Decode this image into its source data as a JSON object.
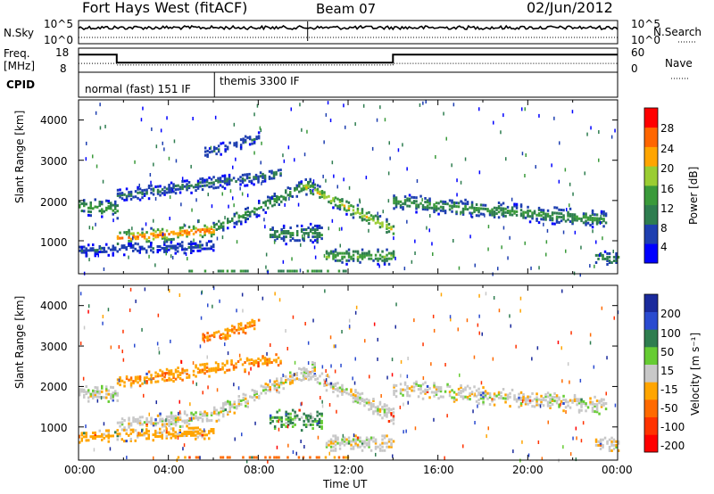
{
  "header": {
    "station": "Fort Hays West (fitACF)",
    "beam": "Beam 07",
    "date": "02/Jun/2012"
  },
  "status_panels": {
    "nsky_label": "N.Sky",
    "nsky_ticks": [
      "10^5",
      "10^0"
    ],
    "nsearch_label": "N.Search",
    "nsearch_ticks": [
      "10^5",
      "10^0"
    ],
    "freq_label_1": "Freq.",
    "freq_label_2": "[MHz]",
    "freq_ticks": [
      "18",
      "8"
    ],
    "nave_label": "Nave",
    "nave_ticks": [
      "60",
      "0"
    ],
    "cpid_label": "CPID",
    "cpid_segments": [
      {
        "start": 0,
        "label": "normal (fast) 151 IF"
      },
      {
        "start": 6.05,
        "label": "themis 3300 IF"
      }
    ],
    "freq_steps": [
      {
        "x": 0,
        "v": 15.3
      },
      {
        "x": 1.7,
        "v": 15.3
      },
      {
        "x": 1.7,
        "v": 12.0
      },
      {
        "x": 14.0,
        "v": 12.0
      },
      {
        "x": 14.0,
        "v": 15.3
      },
      {
        "x": 24,
        "v": 15.3
      }
    ],
    "nave_steps": [
      {
        "x": 0,
        "v": 22
      },
      {
        "x": 1.7,
        "v": 22
      },
      {
        "x": 1.7,
        "v": 18
      },
      {
        "x": 14.0,
        "v": 18
      },
      {
        "x": 14.0,
        "v": 22
      },
      {
        "x": 24,
        "v": 22
      }
    ]
  },
  "chart_data": [
    {
      "type": "heatmap",
      "name": "power",
      "ylabel": "Slant Range [km]",
      "ylim": [
        180,
        4500
      ],
      "yticks": [
        "4000",
        "3000",
        "2000",
        "1000"
      ],
      "ytick_values": [
        4000,
        3000,
        2000,
        1000
      ],
      "xlim": [
        0,
        24
      ],
      "colorbar_label": "Power [dB]",
      "colorbar_ticks": [
        "28",
        "24",
        "20",
        "16",
        "12",
        "8",
        "4"
      ],
      "colorbar_values": [
        28,
        24,
        20,
        16,
        12,
        8,
        4
      ],
      "colorbar_range": [
        0,
        30
      ],
      "colorbar_colors": [
        "#0000ff",
        "#1e3fb0",
        "#2e7d4f",
        "#3a9a3a",
        "#9acd32",
        "#ffa500",
        "#ff6600",
        "#ff0000"
      ],
      "bands": [
        {
          "t0": 0.0,
          "t1": 1.7,
          "r0": 1900,
          "r1": 1800,
          "w": 420,
          "p": 14
        },
        {
          "t0": 1.7,
          "t1": 6.0,
          "r0": 1100,
          "r1": 1300,
          "w": 380,
          "p": 24
        },
        {
          "t0": 6.0,
          "t1": 10.5,
          "r0": 1350,
          "r1": 2500,
          "w": 400,
          "p": 12
        },
        {
          "t0": 10.0,
          "t1": 14.0,
          "r0": 2400,
          "r1": 1300,
          "w": 380,
          "p": 18
        },
        {
          "t0": 14.0,
          "t1": 23.5,
          "r0": 2000,
          "r1": 1550,
          "w": 420,
          "p": 12
        },
        {
          "t0": 1.7,
          "t1": 9.0,
          "r0": 2150,
          "r1": 2700,
          "w": 350,
          "p": 8
        },
        {
          "t0": 0.0,
          "t1": 6.0,
          "r0": 800,
          "r1": 900,
          "w": 300,
          "p": 6
        },
        {
          "t0": 8.5,
          "t1": 10.8,
          "r0": 1200,
          "r1": 1200,
          "w": 500,
          "p": 10
        },
        {
          "t0": 11.0,
          "t1": 14.0,
          "r0": 650,
          "r1": 650,
          "w": 400,
          "p": 14
        },
        {
          "t0": 4.0,
          "t1": 12.0,
          "r0": 250,
          "r1": 250,
          "w": 120,
          "p": 18
        },
        {
          "t0": 23.0,
          "t1": 24.0,
          "r0": 600,
          "r1": 600,
          "w": 400,
          "p": 10
        },
        {
          "t0": 5.5,
          "t1": 8.0,
          "r0": 3200,
          "r1": 3600,
          "w": 300,
          "p": 6
        }
      ]
    },
    {
      "type": "heatmap",
      "name": "velocity",
      "ylabel": "Slant Range [km]",
      "ylim": [
        180,
        4500
      ],
      "yticks": [
        "4000",
        "3000",
        "2000",
        "1000"
      ],
      "ytick_values": [
        4000,
        3000,
        2000,
        1000
      ],
      "xlim": [
        0,
        24
      ],
      "xlabel": "Time UT",
      "xticks": [
        "00:00",
        "04:00",
        "08:00",
        "12:00",
        "16:00",
        "20:00",
        "00:00"
      ],
      "xtick_values": [
        0,
        4,
        8,
        12,
        16,
        20,
        24
      ],
      "colorbar_label": "Velocity [m s⁻¹]",
      "colorbar_ticks": [
        "200",
        "100",
        "50",
        "15",
        "-15",
        "-50",
        "-100",
        "-200"
      ],
      "colorbar_colors": [
        "#1a2a9c",
        "#2a4bd0",
        "#2e7d4f",
        "#66cc33",
        "#c8c8c8",
        "#ffa500",
        "#ff6a00",
        "#ff3300",
        "#ff0000"
      ],
      "bands": [
        {
          "t0": 0.0,
          "t1": 1.7,
          "r0": 1900,
          "r1": 1800,
          "w": 420,
          "v": 0
        },
        {
          "t0": 1.7,
          "t1": 6.0,
          "r0": 1100,
          "r1": 1300,
          "w": 380,
          "v": 0
        },
        {
          "t0": 6.0,
          "t1": 10.5,
          "r0": 1350,
          "r1": 2500,
          "w": 400,
          "v": 0
        },
        {
          "t0": 10.0,
          "t1": 14.0,
          "r0": 2400,
          "r1": 1300,
          "w": 380,
          "v": 0
        },
        {
          "t0": 14.0,
          "t1": 23.5,
          "r0": 2000,
          "r1": 1550,
          "w": 420,
          "v": 0
        },
        {
          "t0": 1.7,
          "t1": 9.0,
          "r0": 2150,
          "r1": 2700,
          "w": 350,
          "v": -40
        },
        {
          "t0": 0.0,
          "t1": 6.0,
          "r0": 800,
          "r1": 900,
          "w": 300,
          "v": -30
        },
        {
          "t0": 8.5,
          "t1": 10.8,
          "r0": 1200,
          "r1": 1200,
          "w": 500,
          "v": 30
        },
        {
          "t0": 11.0,
          "t1": 14.0,
          "r0": 650,
          "r1": 650,
          "w": 400,
          "v": 0
        },
        {
          "t0": 4.0,
          "t1": 12.0,
          "r0": 250,
          "r1": 250,
          "w": 120,
          "v": -60
        },
        {
          "t0": 23.0,
          "t1": 24.0,
          "r0": 600,
          "r1": 600,
          "w": 400,
          "v": 0
        },
        {
          "t0": 5.5,
          "t1": 8.0,
          "r0": 3200,
          "r1": 3600,
          "w": 300,
          "v": -50
        }
      ]
    }
  ]
}
